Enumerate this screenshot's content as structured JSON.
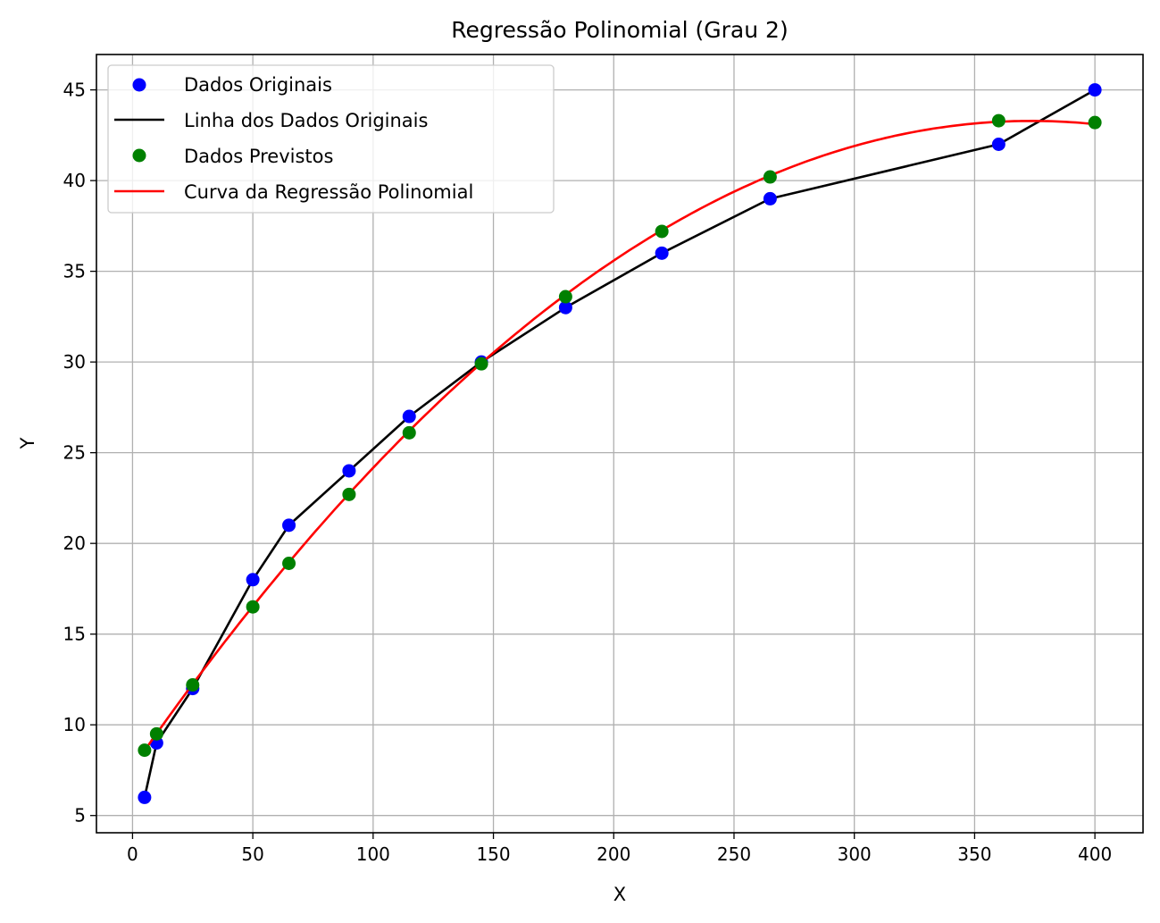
{
  "chart_data": {
    "type": "scatter",
    "title": "Regressão Polinomial (Grau 2)",
    "xlabel": "X",
    "ylabel": "Y",
    "xlim": [
      -15,
      420
    ],
    "ylim": [
      4.05,
      46.95
    ],
    "xticks": [
      0,
      50,
      100,
      150,
      200,
      250,
      300,
      350,
      400
    ],
    "yticks": [
      5,
      10,
      15,
      20,
      25,
      30,
      35,
      40,
      45
    ],
    "grid": true,
    "legend_position": "top-left",
    "series": [
      {
        "name": "Dados Originais",
        "kind": "scatter",
        "color": "#0000ff",
        "x": [
          5,
          10,
          25,
          50,
          65,
          90,
          115,
          145,
          180,
          220,
          265,
          360,
          400
        ],
        "y": [
          6,
          9,
          12,
          18,
          21,
          24,
          27,
          30,
          33,
          36,
          39,
          42,
          45
        ]
      },
      {
        "name": "Linha dos Dados Originais",
        "kind": "line",
        "color": "#000000",
        "x": [
          5,
          10,
          25,
          50,
          65,
          90,
          115,
          145,
          180,
          220,
          265,
          360,
          400
        ],
        "y": [
          6,
          9,
          12,
          18,
          21,
          24,
          27,
          30,
          33,
          36,
          39,
          42,
          45
        ]
      },
      {
        "name": "Dados Previstos",
        "kind": "scatter",
        "color": "#008000",
        "x": [
          5,
          10,
          25,
          50,
          65,
          90,
          115,
          145,
          180,
          220,
          265,
          360,
          400
        ],
        "y": [
          8.6,
          9.5,
          12.2,
          16.5,
          18.9,
          22.7,
          26.1,
          29.9,
          33.6,
          37.2,
          40.2,
          43.3,
          43.2
        ]
      },
      {
        "name": "Curva da Regressão Polinomial",
        "kind": "curve",
        "color": "#ff0000",
        "coefficients": [
          7.63,
          0.1909,
          -0.0002555
        ],
        "x_range": [
          5,
          400
        ]
      }
    ]
  }
}
